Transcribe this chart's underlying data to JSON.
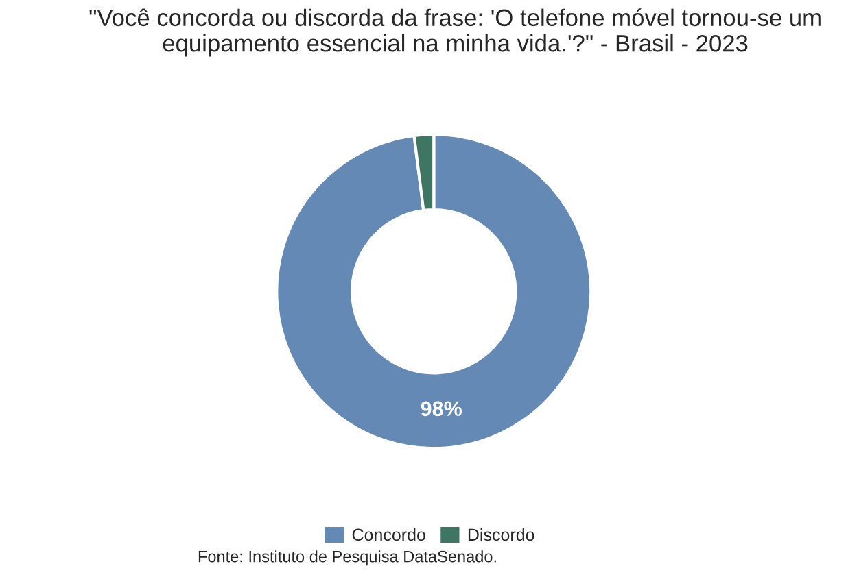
{
  "chart_data": {
    "type": "donut",
    "title": "\"Você concorda ou discorda da frase: 'O telefone móvel tornou-se um equipamento essencial na minha vida.'?\" - Brasil - 2023",
    "categories": [
      "Concordo",
      "Discordo"
    ],
    "values": [
      98,
      2
    ],
    "colors": [
      "#6489b4",
      "#3f7563"
    ],
    "value_labels": [
      "98%",
      null
    ],
    "legend": "bottom",
    "annotations": [
      "Fonte: Instituto de Pesquisa DataSenado."
    ]
  }
}
